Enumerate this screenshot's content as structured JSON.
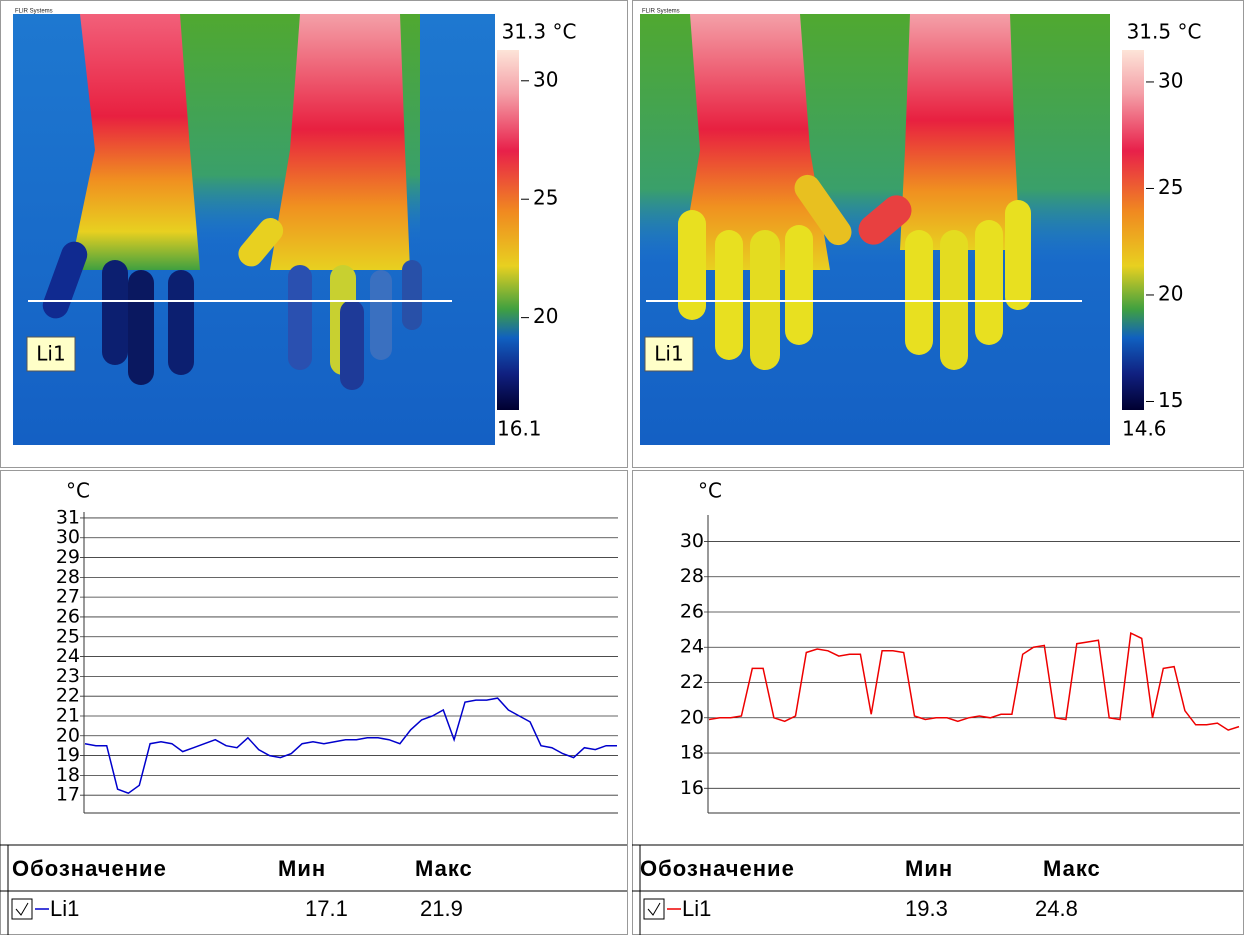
{
  "chart_data": [
    {
      "type": "line",
      "y_label": "°C",
      "ylim": [
        16.1,
        31.3
      ],
      "yticks": [
        17,
        18,
        19,
        20,
        21,
        22,
        23,
        24,
        25,
        26,
        27,
        28,
        29,
        30,
        31
      ],
      "grid": true,
      "series": [
        {
          "name": "Li1",
          "color": "#0000cc",
          "values": [
            19.6,
            19.5,
            19.5,
            17.3,
            17.1,
            17.5,
            19.6,
            19.7,
            19.6,
            19.2,
            19.4,
            19.6,
            19.8,
            19.5,
            19.4,
            19.9,
            19.3,
            19.0,
            18.9,
            19.1,
            19.6,
            19.7,
            19.6,
            19.7,
            19.8,
            19.8,
            19.9,
            19.9,
            19.8,
            19.6,
            20.3,
            20.8,
            21.0,
            21.3,
            19.8,
            21.7,
            21.8,
            21.8,
            21.9,
            21.3,
            21.0,
            20.7,
            19.5,
            19.4,
            19.1,
            18.9,
            19.4,
            19.3,
            19.5,
            19.5
          ]
        }
      ]
    },
    {
      "type": "line",
      "y_label": "°C",
      "ylim": [
        14.6,
        31.5
      ],
      "yticks": [
        16,
        18,
        20,
        22,
        24,
        26,
        28,
        30
      ],
      "grid": true,
      "series": [
        {
          "name": "Li1",
          "color": "#ee0000",
          "values": [
            19.9,
            20.0,
            20.0,
            20.1,
            22.8,
            22.8,
            20.0,
            19.8,
            20.1,
            23.7,
            23.9,
            23.8,
            23.5,
            23.6,
            23.6,
            20.2,
            23.8,
            23.8,
            23.7,
            20.1,
            19.9,
            20.0,
            20.0,
            19.8,
            20.0,
            20.1,
            20.0,
            20.2,
            20.2,
            23.6,
            24.0,
            24.1,
            20.0,
            19.9,
            24.2,
            24.3,
            24.4,
            20.0,
            19.9,
            24.8,
            24.5,
            20.0,
            22.8,
            22.9,
            20.4,
            19.6,
            19.6,
            19.7,
            19.3,
            19.5
          ]
        }
      ]
    }
  ],
  "thermal_images": [
    {
      "brand": "FLIR Systems",
      "scale_max": {
        "value": 31.3,
        "label": "31.3 °C"
      },
      "scale_min": 16.1,
      "scale_ticks": [
        30,
        25,
        20
      ],
      "line_label": "Li1"
    },
    {
      "brand": "FLIR Systems",
      "scale_max": {
        "value": 31.5,
        "label": "31.5 °C"
      },
      "scale_min": 14.6,
      "scale_ticks": [
        30,
        25,
        20,
        15
      ],
      "line_label": "Li1"
    }
  ],
  "tables": [
    {
      "headers": [
        "Обозначение",
        "Мин",
        "Макс"
      ],
      "rows": [
        [
          17.1,
          21.9
        ]
      ]
    },
    {
      "headers": [
        "Обозначение",
        "Мин",
        "Макс"
      ],
      "rows": [
        [
          19.3,
          24.8
        ]
      ]
    }
  ]
}
